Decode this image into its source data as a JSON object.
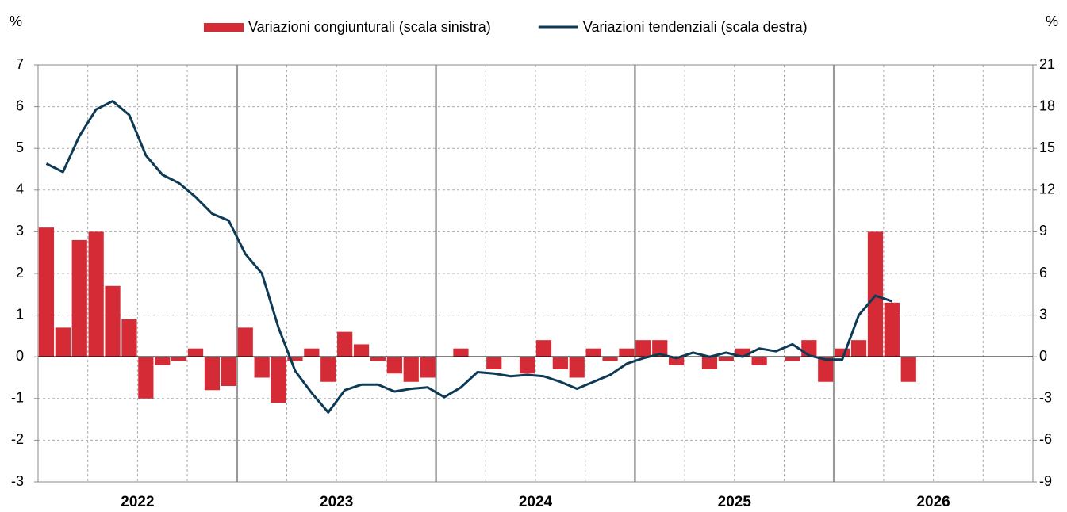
{
  "chart_data": {
    "type": "bar_line",
    "y_unit_left": "%",
    "y_unit_right": "%",
    "x_labels": [
      "2022",
      "2023",
      "2024",
      "2025",
      "2026"
    ],
    "grid": true,
    "legend": "top",
    "series": [
      {
        "name": "Variazioni congiunturali (scala sinistra)",
        "type": "bar",
        "color": "#d52b36",
        "values": [
          3.1,
          0.7,
          2.8,
          3.0,
          1.7,
          0.9,
          -1.0,
          -0.2,
          -0.1,
          0.2,
          -0.8,
          -0.7,
          0.7,
          -0.5,
          -1.1,
          -0.1,
          0.2,
          -0.6,
          0.6,
          0.3,
          -0.1,
          -0.4,
          -0.6,
          -0.5,
          0.0,
          0.2,
          0.0,
          -0.3,
          0.0,
          -0.4,
          0.4,
          -0.3,
          -0.5,
          0.2,
          -0.1,
          0.2,
          0.4,
          0.4,
          -0.2,
          0.0,
          -0.3,
          -0.1,
          0.2,
          -0.2,
          0.0,
          -0.1,
          0.4,
          -0.6,
          0.2,
          0.4,
          3.0,
          1.3,
          -0.6,
          null,
          null,
          null,
          null,
          null,
          null,
          null
        ]
      },
      {
        "name": "Variazioni tendenziali (scala destra)",
        "type": "line",
        "axis": "y2",
        "color": "#0d3a55",
        "values": [
          13.9,
          13.3,
          15.9,
          17.8,
          18.4,
          17.4,
          14.5,
          13.1,
          12.5,
          11.5,
          10.3,
          9.8,
          7.4,
          6.0,
          2.1,
          -1.0,
          -2.6,
          -4.0,
          -2.4,
          -2.0,
          -2.0,
          -2.5,
          -2.3,
          -2.2,
          -2.9,
          -2.2,
          -1.1,
          -1.2,
          -1.4,
          -1.3,
          -1.4,
          -1.8,
          -2.3,
          -1.8,
          -1.3,
          -0.5,
          -0.1,
          0.2,
          -0.1,
          0.3,
          0.0,
          0.3,
          0.0,
          0.6,
          0.4,
          0.9,
          0.1,
          -0.2,
          -0.2,
          3.0,
          4.4,
          4.0,
          null,
          null,
          null,
          null,
          null,
          null,
          null,
          null
        ]
      }
    ],
    "ylim": [
      -3,
      7
    ],
    "yticks": [
      -3,
      -2,
      -1,
      0,
      1,
      2,
      3,
      4,
      5,
      6,
      7
    ],
    "y2lim": [
      -9,
      21
    ],
    "y2ticks": [
      -9,
      -6,
      -3,
      0,
      3,
      6,
      9,
      12,
      15,
      18,
      21
    ]
  }
}
